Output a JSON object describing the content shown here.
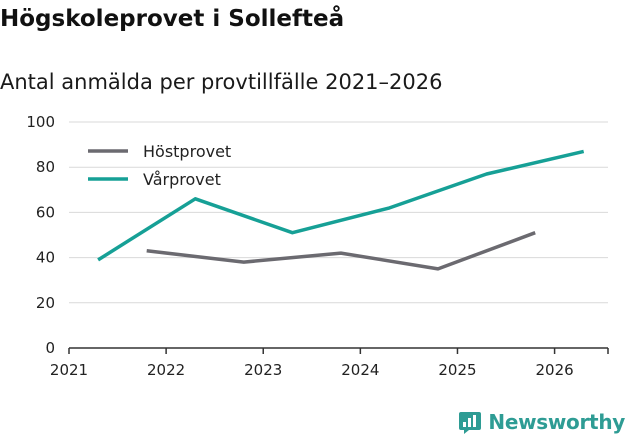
{
  "title": "Högskoleprovet i Sollefteå",
  "subtitle": "Antal anmälda per provtillfälle 2021–2026",
  "brand": {
    "name": "Newsworthy",
    "color": "#2e9c94"
  },
  "chart_data": {
    "type": "line",
    "title": "Högskoleprovet i Sollefteå",
    "subtitle": "Antal anmälda per provtillfälle 2021–2026",
    "xlabel": "",
    "ylabel": "",
    "xlim": [
      2021,
      2026.55
    ],
    "ylim": [
      0,
      100
    ],
    "x_ticks": [
      "2021",
      "2022",
      "2023",
      "2024",
      "2025",
      "2026"
    ],
    "y_ticks": [
      "0",
      "20",
      "40",
      "60",
      "80",
      "100"
    ],
    "grid": true,
    "legend_position": "top-left",
    "series": [
      {
        "name": "Höstprovet",
        "color": "#6b6a70",
        "x": [
          2021.8,
          2022.8,
          2023.8,
          2024.8,
          2025.8
        ],
        "y": [
          43,
          38,
          42,
          35,
          51
        ]
      },
      {
        "name": "Vårprovet",
        "color": "#16a096",
        "x": [
          2021.3,
          2022.3,
          2023.3,
          2024.3,
          2025.3,
          2026.3
        ],
        "y": [
          39,
          66,
          51,
          62,
          77,
          87
        ]
      }
    ]
  }
}
